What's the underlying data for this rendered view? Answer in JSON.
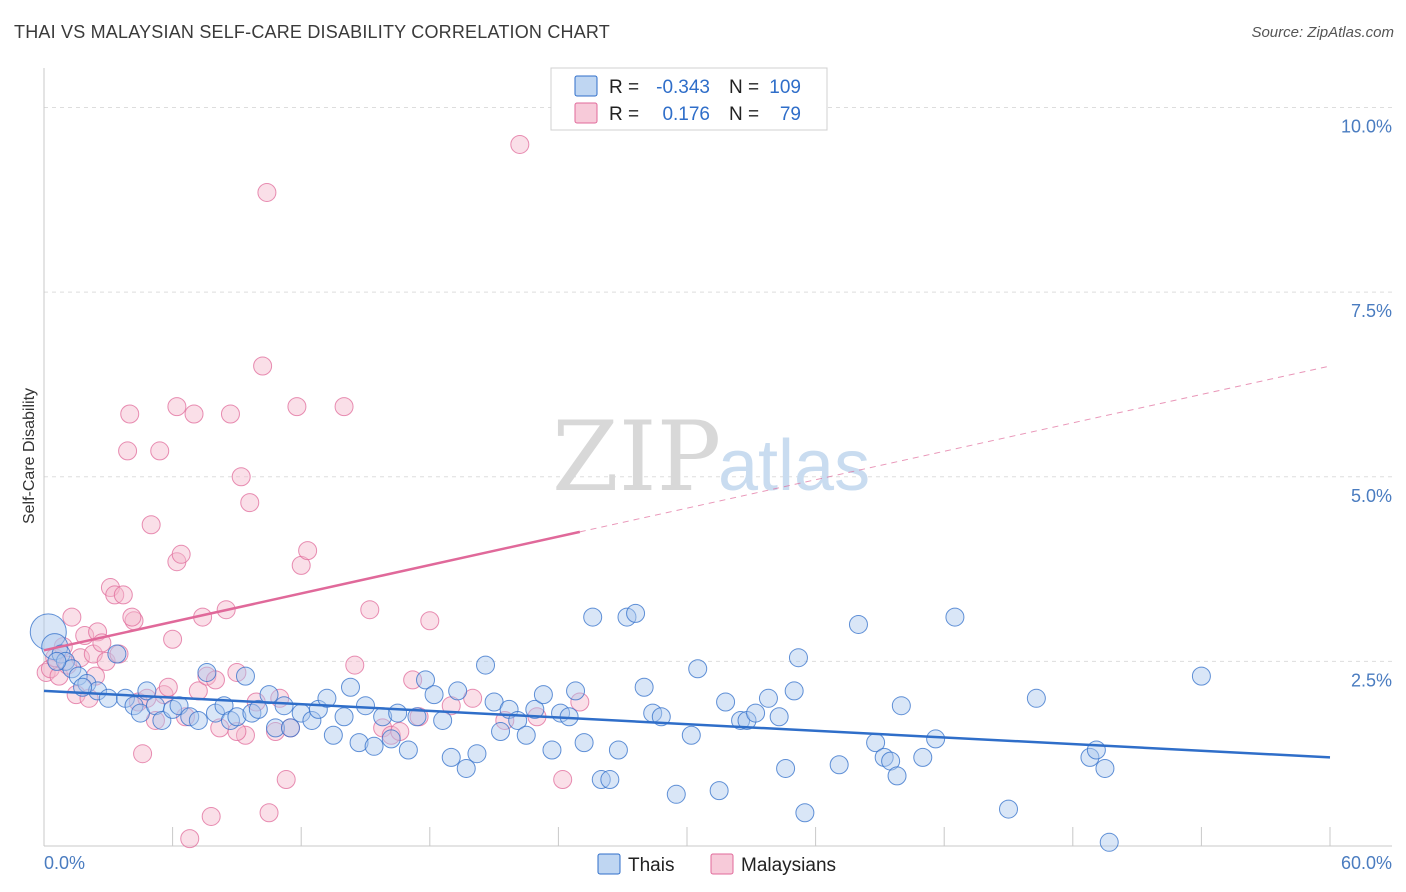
{
  "title": "THAI VS MALAYSIAN SELF-CARE DISABILITY CORRELATION CHART",
  "source": "Source: ZipAtlas.com",
  "watermark": {
    "zip": "ZIP",
    "atlas": "atlas"
  },
  "colors": {
    "blue": "#2f6ec9",
    "blue_fill": "#aac8ee",
    "pink": "#e0699a",
    "pink_fill": "#f4b8cc",
    "tick": "#4a7cc0",
    "grid": "#dddddd"
  },
  "legend": {
    "r_label": "R =",
    "n_label": "N =",
    "rows": [
      {
        "series": "Thais",
        "r": "-0.343",
        "n": "109"
      },
      {
        "series": "Malaysians",
        "r": "0.176",
        "n": "79"
      }
    ]
  },
  "bottom_legend": [
    "Thais",
    "Malaysians"
  ],
  "chart_data": {
    "type": "scatter",
    "title": "THAI VS MALAYSIAN SELF-CARE DISABILITY CORRELATION CHART",
    "xlabel": "",
    "ylabel": "Self-Care Disability",
    "xlim": [
      0,
      60
    ],
    "ylim": [
      0,
      10.4
    ],
    "x_tick_labels": [
      "0.0%",
      "60.0%"
    ],
    "y_ticks": [
      2.5,
      5.0,
      7.5,
      10.0
    ],
    "y_tick_labels": [
      "2.5%",
      "5.0%",
      "7.5%",
      "10.0%"
    ],
    "grid": true,
    "legend_position": "top-center",
    "series": [
      {
        "name": "Thais",
        "color": "#2f6ec9",
        "trend": {
          "x": [
            0,
            60
          ],
          "y": [
            2.1,
            1.2
          ],
          "dashed_from": null
        },
        "points": [
          [
            0.2,
            2.9
          ],
          [
            0.5,
            2.7
          ],
          [
            0.8,
            2.6
          ],
          [
            1.0,
            2.5
          ],
          [
            1.3,
            2.4
          ],
          [
            1.6,
            2.3
          ],
          [
            2.0,
            2.2
          ],
          [
            2.5,
            2.1
          ],
          [
            3.0,
            2.0
          ],
          [
            3.4,
            2.6
          ],
          [
            3.8,
            2.0
          ],
          [
            4.2,
            1.9
          ],
          [
            4.5,
            1.8
          ],
          [
            4.8,
            2.1
          ],
          [
            5.2,
            1.9
          ],
          [
            5.5,
            1.7
          ],
          [
            6.0,
            1.85
          ],
          [
            6.3,
            1.9
          ],
          [
            6.8,
            1.75
          ],
          [
            7.2,
            1.7
          ],
          [
            7.6,
            2.35
          ],
          [
            8.0,
            1.8
          ],
          [
            8.4,
            1.9
          ],
          [
            8.7,
            1.7
          ],
          [
            9.0,
            1.75
          ],
          [
            9.4,
            2.3
          ],
          [
            9.7,
            1.8
          ],
          [
            10.0,
            1.85
          ],
          [
            10.5,
            2.05
          ],
          [
            10.8,
            1.6
          ],
          [
            11.2,
            1.9
          ],
          [
            11.5,
            1.6
          ],
          [
            12.0,
            1.8
          ],
          [
            12.5,
            1.7
          ],
          [
            12.8,
            1.85
          ],
          [
            13.2,
            2.0
          ],
          [
            13.5,
            1.5
          ],
          [
            14.0,
            1.75
          ],
          [
            14.3,
            2.15
          ],
          [
            14.7,
            1.4
          ],
          [
            15.0,
            1.9
          ],
          [
            15.4,
            1.35
          ],
          [
            15.8,
            1.75
          ],
          [
            16.2,
            1.45
          ],
          [
            16.5,
            1.8
          ],
          [
            17.0,
            1.3
          ],
          [
            17.4,
            1.75
          ],
          [
            17.8,
            2.25
          ],
          [
            18.2,
            2.05
          ],
          [
            18.6,
            1.7
          ],
          [
            19.0,
            1.2
          ],
          [
            19.3,
            2.1
          ],
          [
            19.7,
            1.05
          ],
          [
            20.2,
            1.25
          ],
          [
            20.6,
            2.45
          ],
          [
            21.0,
            1.95
          ],
          [
            21.3,
            1.55
          ],
          [
            21.7,
            1.85
          ],
          [
            22.1,
            1.7
          ],
          [
            22.5,
            1.5
          ],
          [
            22.9,
            1.85
          ],
          [
            23.3,
            2.05
          ],
          [
            23.7,
            1.3
          ],
          [
            24.1,
            1.8
          ],
          [
            24.5,
            1.75
          ],
          [
            24.8,
            2.1
          ],
          [
            25.2,
            1.4
          ],
          [
            25.6,
            3.1
          ],
          [
            26.0,
            0.9
          ],
          [
            26.4,
            0.9
          ],
          [
            26.8,
            1.3
          ],
          [
            27.2,
            3.1
          ],
          [
            27.6,
            3.15
          ],
          [
            28.0,
            2.15
          ],
          [
            28.4,
            1.8
          ],
          [
            28.8,
            1.75
          ],
          [
            29.5,
            0.7
          ],
          [
            30.2,
            1.5
          ],
          [
            30.5,
            2.4
          ],
          [
            31.5,
            0.75
          ],
          [
            31.8,
            1.95
          ],
          [
            32.5,
            1.7
          ],
          [
            32.8,
            1.7
          ],
          [
            33.2,
            1.8
          ],
          [
            33.8,
            2.0
          ],
          [
            34.3,
            1.75
          ],
          [
            34.6,
            1.05
          ],
          [
            35.0,
            2.1
          ],
          [
            35.2,
            2.55
          ],
          [
            35.5,
            0.45
          ],
          [
            37.1,
            1.1
          ],
          [
            38.0,
            3.0
          ],
          [
            38.8,
            1.4
          ],
          [
            39.2,
            1.2
          ],
          [
            39.5,
            1.15
          ],
          [
            39.8,
            0.95
          ],
          [
            40.0,
            1.9
          ],
          [
            41.0,
            1.2
          ],
          [
            41.6,
            1.45
          ],
          [
            42.5,
            3.1
          ],
          [
            45.0,
            0.5
          ],
          [
            46.3,
            2.0
          ],
          [
            48.8,
            1.2
          ],
          [
            49.1,
            1.3
          ],
          [
            49.5,
            1.05
          ],
          [
            49.7,
            0.05
          ],
          [
            54.0,
            2.3
          ],
          [
            0.6,
            2.5
          ],
          [
            1.8,
            2.15
          ]
        ]
      },
      {
        "name": "Malaysians",
        "color": "#e0699a",
        "trend": {
          "x": [
            0,
            60
          ],
          "y": [
            2.65,
            6.5
          ],
          "dashed_from": 25
        },
        "points": [
          [
            0.1,
            2.35
          ],
          [
            0.3,
            2.4
          ],
          [
            0.5,
            2.55
          ],
          [
            0.7,
            2.3
          ],
          [
            0.9,
            2.7
          ],
          [
            1.1,
            2.45
          ],
          [
            1.3,
            3.1
          ],
          [
            1.5,
            2.05
          ],
          [
            1.7,
            2.55
          ],
          [
            1.9,
            2.85
          ],
          [
            2.1,
            2.0
          ],
          [
            2.3,
            2.6
          ],
          [
            2.5,
            2.9
          ],
          [
            2.7,
            2.75
          ],
          [
            2.9,
            2.5
          ],
          [
            3.1,
            3.5
          ],
          [
            3.3,
            3.4
          ],
          [
            3.5,
            2.6
          ],
          [
            3.7,
            3.4
          ],
          [
            3.9,
            5.35
          ],
          [
            4.0,
            5.85
          ],
          [
            4.2,
            3.05
          ],
          [
            4.4,
            1.95
          ],
          [
            4.6,
            1.25
          ],
          [
            4.8,
            2.0
          ],
          [
            5.0,
            4.35
          ],
          [
            5.2,
            1.7
          ],
          [
            5.4,
            5.35
          ],
          [
            5.6,
            2.05
          ],
          [
            5.8,
            2.15
          ],
          [
            6.0,
            2.8
          ],
          [
            6.2,
            3.85
          ],
          [
            6.4,
            3.95
          ],
          [
            6.6,
            1.75
          ],
          [
            6.8,
            0.1
          ],
          [
            7.0,
            5.85
          ],
          [
            7.2,
            2.1
          ],
          [
            7.4,
            3.1
          ],
          [
            7.6,
            2.3
          ],
          [
            7.8,
            0.4
          ],
          [
            8.0,
            2.25
          ],
          [
            8.2,
            1.6
          ],
          [
            8.5,
            3.2
          ],
          [
            8.7,
            5.85
          ],
          [
            9.0,
            2.35
          ],
          [
            9.2,
            5.0
          ],
          [
            9.4,
            1.5
          ],
          [
            9.6,
            4.65
          ],
          [
            9.9,
            1.95
          ],
          [
            10.2,
            6.5
          ],
          [
            10.5,
            0.45
          ],
          [
            10.8,
            1.55
          ],
          [
            11.0,
            2.0
          ],
          [
            11.3,
            0.9
          ],
          [
            11.5,
            1.6
          ],
          [
            11.8,
            5.95
          ],
          [
            12.0,
            3.8
          ],
          [
            12.3,
            4.0
          ],
          [
            10.4,
            8.85
          ],
          [
            6.2,
            5.95
          ],
          [
            14.0,
            5.95
          ],
          [
            14.5,
            2.45
          ],
          [
            15.2,
            3.2
          ],
          [
            15.8,
            1.6
          ],
          [
            16.2,
            1.5
          ],
          [
            16.6,
            1.55
          ],
          [
            17.2,
            2.25
          ],
          [
            17.5,
            1.75
          ],
          [
            18.0,
            3.05
          ],
          [
            19.0,
            1.9
          ],
          [
            20.0,
            2.0
          ],
          [
            21.5,
            1.7
          ],
          [
            22.2,
            9.5
          ],
          [
            23.0,
            1.75
          ],
          [
            24.2,
            0.9
          ],
          [
            25.0,
            1.95
          ],
          [
            2.4,
            2.3
          ],
          [
            4.1,
            3.1
          ],
          [
            9.0,
            1.55
          ]
        ]
      }
    ]
  }
}
